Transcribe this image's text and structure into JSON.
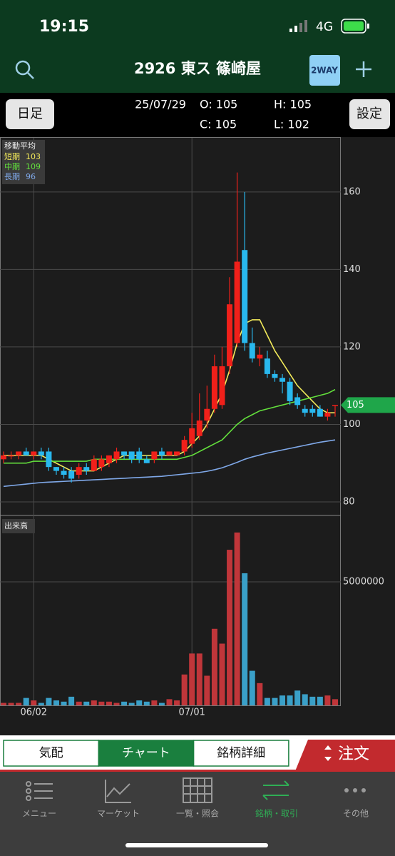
{
  "status_bar": {
    "time": "19:15",
    "network": "4G"
  },
  "header": {
    "title": "2926 東ス 篠崎屋",
    "badge": "2WAY"
  },
  "info": {
    "period_button": "日足",
    "date": "25/07/29",
    "open": "O: 105",
    "high": "H: 105",
    "close": "C: 105",
    "low": "L: 102",
    "settings_button": "設定"
  },
  "chart_data": [
    {
      "type": "candlestick",
      "title": "移動平均",
      "categories": [
        null,
        null,
        null,
        null,
        "06/02",
        null,
        null,
        null,
        null,
        null,
        null,
        null,
        null,
        null,
        null,
        null,
        null,
        null,
        null,
        null,
        null,
        null,
        null,
        null,
        null,
        "07/01",
        null,
        null,
        null,
        null,
        null,
        null,
        null,
        null,
        null,
        null,
        null,
        null,
        null,
        null,
        null,
        null,
        null,
        null,
        null
      ],
      "open": [
        91,
        92,
        92,
        93,
        92,
        93,
        93,
        89,
        88,
        88,
        87,
        89,
        88,
        89,
        90,
        91,
        93,
        93,
        93,
        91,
        91,
        93,
        92,
        92,
        93,
        95,
        97,
        101,
        104,
        105,
        115,
        121,
        145,
        121,
        117,
        117,
        113,
        112,
        111,
        107,
        104,
        104,
        104,
        102,
        105
      ],
      "high": [
        93,
        93,
        93,
        94,
        93,
        94,
        94,
        89,
        89,
        89,
        90,
        90,
        92,
        92,
        92,
        94,
        93,
        93,
        94,
        92,
        93,
        94,
        93,
        93,
        97,
        103,
        108,
        110,
        118,
        120,
        138,
        165,
        160,
        125,
        120,
        119,
        114,
        113,
        112,
        108,
        105,
        105,
        105,
        104,
        105
      ],
      "low": [
        90,
        91,
        91,
        92,
        91,
        91,
        88,
        87,
        86,
        85,
        86,
        87,
        88,
        88,
        89,
        90,
        91,
        90,
        90,
        90,
        90,
        91,
        92,
        92,
        92,
        94,
        96,
        99,
        103,
        104,
        113,
        120,
        119,
        116,
        115,
        112,
        111,
        108,
        105,
        104,
        102,
        102,
        102,
        101,
        102
      ],
      "close": [
        92,
        92,
        93,
        92,
        93,
        92,
        89,
        88,
        87,
        86,
        89,
        88,
        91,
        91,
        92,
        93,
        92,
        91,
        91,
        90,
        93,
        92,
        93,
        93,
        96,
        99,
        101,
        104,
        115,
        115,
        131,
        142,
        121,
        117,
        118,
        113,
        112,
        111,
        106,
        105,
        103,
        103,
        102,
        103,
        105
      ],
      "up_color": "#f0201a",
      "down_color": "#29b8ee",
      "series": [
        {
          "name": "短期",
          "legend_value": 103,
          "color": "#f2ea5a",
          "values": [
            92,
            92,
            92,
            92,
            92,
            92,
            91,
            90,
            89,
            88,
            88,
            88,
            88,
            89,
            90,
            91,
            92,
            92,
            92,
            92,
            92,
            92,
            92,
            92,
            93,
            95,
            97,
            100,
            104,
            108,
            114,
            121,
            126,
            127,
            127,
            123,
            119,
            116,
            113,
            110,
            108,
            106,
            104,
            103,
            103
          ]
        },
        {
          "name": "中期",
          "legend_value": 109,
          "color": "#63e03c",
          "values": [
            90,
            90,
            90,
            90,
            90.5,
            90.5,
            90.5,
            90.5,
            90.5,
            90.5,
            90.5,
            90.5,
            91,
            91,
            91,
            91,
            91,
            91,
            91,
            91,
            91,
            91,
            91,
            91,
            91.5,
            92,
            93,
            94,
            95,
            96,
            98,
            100,
            101.5,
            102.5,
            103.5,
            104,
            104.5,
            105,
            105.5,
            106,
            106.5,
            107,
            107.5,
            108,
            109
          ]
        },
        {
          "name": "長期",
          "legend_value": 96,
          "color": "#7fa8e8",
          "values": [
            84,
            84.2,
            84.4,
            84.6,
            84.8,
            85,
            85.1,
            85.2,
            85.3,
            85.4,
            85.5,
            85.6,
            85.7,
            85.8,
            85.9,
            86,
            86.1,
            86.2,
            86.3,
            86.4,
            86.5,
            86.6,
            86.8,
            87,
            87.2,
            87.4,
            87.6,
            87.9,
            88.3,
            88.8,
            89.5,
            90.2,
            91,
            91.6,
            92.1,
            92.6,
            93,
            93.4,
            93.8,
            94.2,
            94.6,
            95,
            95.4,
            95.7,
            96
          ]
        }
      ],
      "last_price": 105,
      "ylim": [
        76.5,
        173.6
      ],
      "yticks": [
        80,
        100,
        120,
        140,
        160
      ],
      "grid": true
    },
    {
      "type": "bar",
      "title": "出来高",
      "values": [
        100000,
        100000,
        100000,
        300000,
        200000,
        100000,
        300000,
        200000,
        150000,
        350000,
        150000,
        150000,
        200000,
        150000,
        150000,
        100000,
        150000,
        100000,
        200000,
        150000,
        200000,
        100000,
        250000,
        200000,
        1250000,
        2100000,
        2100000,
        1200000,
        3100000,
        2500000,
        6300000,
        7000000,
        5350000,
        1400000,
        900000,
        300000,
        300000,
        400000,
        400000,
        600000,
        450000,
        350000,
        350000,
        400000,
        250000
      ],
      "up_color": "#c0363a",
      "down_color": "#3aa0c8",
      "ylim": [
        0,
        7690000
      ],
      "yticks": [
        5000000
      ],
      "grid": true
    }
  ],
  "tabs": [
    "気配",
    "チャート",
    "銘柄詳細"
  ],
  "order_button": "注文",
  "nav": [
    "メニュー",
    "マーケット",
    "一覧・照会",
    "銘柄・取引",
    "その他"
  ]
}
